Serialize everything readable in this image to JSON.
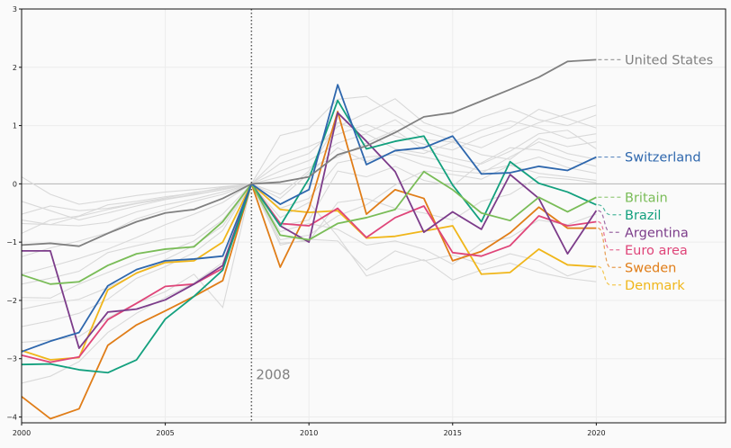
{
  "chart_data": {
    "type": "line",
    "title": "",
    "xlabel": "",
    "ylabel": "",
    "xlim": [
      2000,
      2024.5
    ],
    "ylim": [
      -4.1,
      3
    ],
    "x_ticks": [
      "2000",
      "2005",
      "2010",
      "2015",
      "2020"
    ],
    "y_ticks": [
      "3",
      "2",
      "1",
      "0",
      "−1",
      "−2",
      "−3",
      "−4"
    ],
    "grid": true,
    "reference_year": 2008,
    "annotation": "2008",
    "x": [
      2000,
      2001,
      2002,
      2003,
      2004,
      2005,
      2006,
      2007,
      2008,
      2009,
      2010,
      2011,
      2012,
      2013,
      2014,
      2015,
      2016,
      2017,
      2018,
      2019,
      2020
    ],
    "series": [
      {
        "name": "United States",
        "color": "#808080",
        "values": [
          -1.05,
          -1.02,
          -1.07,
          -0.85,
          -0.65,
          -0.5,
          -0.44,
          -0.25,
          0.0,
          0.03,
          0.12,
          0.5,
          0.65,
          0.88,
          1.15,
          1.22,
          1.42,
          1.62,
          1.83,
          2.1,
          2.13
        ]
      },
      {
        "name": "Switzerland",
        "color": "#2e67ad",
        "values": [
          -2.88,
          -2.7,
          -2.55,
          -1.75,
          -1.47,
          -1.32,
          -1.29,
          -1.24,
          0.0,
          -0.35,
          -0.1,
          1.7,
          0.33,
          0.57,
          0.62,
          0.82,
          0.17,
          0.19,
          0.3,
          0.23,
          0.46
        ]
      },
      {
        "name": "Britain",
        "color": "#79bc57",
        "values": [
          -1.56,
          -1.72,
          -1.68,
          -1.4,
          -1.2,
          -1.12,
          -1.08,
          -0.65,
          0.0,
          -0.88,
          -0.96,
          -0.68,
          -0.58,
          -0.44,
          0.21,
          -0.1,
          -0.5,
          -0.63,
          -0.23,
          -0.48,
          -0.23
        ]
      },
      {
        "name": "Brazil",
        "color": "#13a07e",
        "values": [
          -3.1,
          -3.09,
          -3.19,
          -3.24,
          -3.02,
          -2.32,
          -1.93,
          -1.48,
          0.0,
          -0.72,
          0.09,
          1.43,
          0.6,
          0.73,
          0.82,
          -0.02,
          -0.65,
          0.38,
          0.01,
          -0.14,
          -0.36
        ]
      },
      {
        "name": "Argentina",
        "color": "#7c3c8a",
        "values": [
          -1.15,
          -1.15,
          -2.82,
          -2.2,
          -2.15,
          -1.99,
          -1.72,
          -1.4,
          0.0,
          -0.72,
          -1.0,
          1.22,
          0.73,
          0.21,
          -0.83,
          -0.48,
          -0.78,
          0.16,
          -0.25,
          -1.2,
          -0.46
        ]
      },
      {
        "name": "Euro area",
        "color": "#df4579",
        "values": [
          -2.94,
          -3.06,
          -2.97,
          -2.33,
          -2.05,
          -1.76,
          -1.72,
          -1.45,
          0.0,
          -0.68,
          -0.72,
          -0.42,
          -0.92,
          -0.58,
          -0.38,
          -1.18,
          -1.24,
          -1.06,
          -0.55,
          -0.72,
          -0.65
        ]
      },
      {
        "name": "Sweden",
        "color": "#e07d18",
        "values": [
          -3.65,
          -4.03,
          -3.86,
          -2.77,
          -2.42,
          -2.18,
          -1.93,
          -1.66,
          0.0,
          -1.43,
          -0.42,
          1.24,
          -0.52,
          -0.1,
          -0.25,
          -1.32,
          -1.16,
          -0.84,
          -0.4,
          -0.76,
          -0.76
        ]
      },
      {
        "name": "Denmark",
        "color": "#f0b61a",
        "values": [
          -2.86,
          -3.02,
          -2.98,
          -1.82,
          -1.53,
          -1.35,
          -1.32,
          -1.0,
          0.0,
          -0.44,
          -0.49,
          -0.46,
          -0.93,
          -0.9,
          -0.81,
          -0.72,
          -1.55,
          -1.52,
          -1.12,
          -1.39,
          -1.42
        ]
      }
    ],
    "background_series": [
      [
        0.12,
        -0.18,
        -0.35,
        -0.28,
        -0.2,
        -0.14,
        -0.1,
        -0.05,
        0.0,
        0.83,
        0.95,
        1.45,
        1.5,
        1.18,
        0.9,
        0.75,
        0.62,
        0.85,
        1.05,
        1.2,
        1.35
      ],
      [
        -0.3,
        -0.46,
        -0.62,
        -0.5,
        -0.38,
        -0.27,
        -0.19,
        -0.1,
        0.0,
        0.35,
        0.52,
        0.98,
        1.22,
        1.46,
        1.05,
        0.88,
        1.14,
        1.3,
        1.1,
        1.0,
        1.18
      ],
      [
        -0.52,
        -0.38,
        -0.46,
        -0.42,
        -0.33,
        -0.24,
        -0.15,
        -0.08,
        0.0,
        0.48,
        0.64,
        0.85,
        1.02,
        0.82,
        0.68,
        0.58,
        0.8,
        0.96,
        1.28,
        1.12,
        0.96
      ],
      [
        -0.85,
        -0.62,
        -0.55,
        -0.36,
        -0.3,
        -0.22,
        -0.16,
        -0.06,
        0.0,
        -0.18,
        0.22,
        1.05,
        0.88,
        1.1,
        0.76,
        0.72,
        0.5,
        0.42,
        0.78,
        0.64,
        0.72
      ],
      [
        -0.68,
        -0.7,
        -0.72,
        -0.66,
        -0.48,
        -0.36,
        -0.26,
        -0.14,
        0.0,
        0.12,
        0.28,
        0.46,
        0.7,
        0.92,
        0.58,
        0.44,
        0.34,
        0.56,
        0.86,
        0.92,
        0.6
      ],
      [
        -1.25,
        -1.1,
        -0.98,
        -0.84,
        -0.6,
        -0.45,
        -0.3,
        -0.18,
        0.0,
        -0.42,
        -0.25,
        0.36,
        0.46,
        0.5,
        0.32,
        0.22,
        0.18,
        0.46,
        0.72,
        0.52,
        0.42
      ],
      [
        -1.55,
        -1.42,
        -1.28,
        -1.12,
        -0.92,
        -0.7,
        -0.52,
        -0.32,
        0.0,
        -0.72,
        -0.62,
        0.22,
        0.12,
        0.3,
        0.06,
        -0.04,
        0.36,
        0.62,
        0.58,
        0.42,
        0.3
      ],
      [
        -1.72,
        -1.62,
        -1.5,
        -1.18,
        -1.06,
        -0.95,
        -0.88,
        -0.52,
        0.0,
        -0.96,
        -0.88,
        -0.55,
        -0.36,
        -0.02,
        0.22,
        0.16,
        0.08,
        0.32,
        0.46,
        0.28,
        0.18
      ],
      [
        -1.95,
        -1.96,
        -1.72,
        -1.52,
        -1.32,
        -1.18,
        -0.98,
        -0.62,
        0.0,
        -1.02,
        -0.98,
        -0.32,
        -0.25,
        -0.42,
        -0.5,
        -0.62,
        -0.3,
        -0.18,
        0.12,
        0.08,
        0.02
      ],
      [
        -2.15,
        -2.05,
        -1.98,
        -1.78,
        -1.54,
        -1.3,
        -1.06,
        -0.72,
        0.0,
        -0.82,
        -0.68,
        -0.78,
        -1.05,
        -0.98,
        -1.12,
        -1.38,
        -1.02,
        -0.92,
        -0.62,
        -0.7,
        -0.52
      ],
      [
        -2.45,
        -2.35,
        -2.22,
        -1.98,
        -1.62,
        -1.42,
        -1.18,
        -0.8,
        0.0,
        -1.05,
        -0.95,
        -0.98,
        -1.48,
        -1.15,
        -1.32,
        -1.22,
        -1.38,
        -1.2,
        -1.32,
        -1.58,
        -1.42
      ],
      [
        -2.72,
        -2.68,
        -2.62,
        -2.3,
        -2.05,
        -1.85,
        -1.55,
        -2.12,
        0.0,
        -0.58,
        -0.32,
        -0.9,
        -1.58,
        -1.42,
        -1.3,
        -1.65,
        -1.48,
        -1.36,
        -1.52,
        -1.62,
        -1.68
      ],
      [
        -3.42,
        -3.3,
        -3.05,
        -2.55,
        -2.22,
        -1.95,
        -1.7,
        -1.35,
        0.0,
        -0.25,
        0.18,
        0.62,
        0.38,
        0.56,
        0.46,
        0.36,
        0.22,
        0.32,
        0.18,
        0.12,
        0.06
      ],
      [
        -0.62,
        -0.7,
        -0.56,
        -0.44,
        -0.34,
        -0.26,
        -0.18,
        -0.1,
        0.0,
        0.22,
        0.4,
        0.7,
        0.86,
        0.6,
        0.52,
        0.72,
        0.92,
        1.08,
        0.96,
        0.78,
        0.86
      ]
    ]
  }
}
